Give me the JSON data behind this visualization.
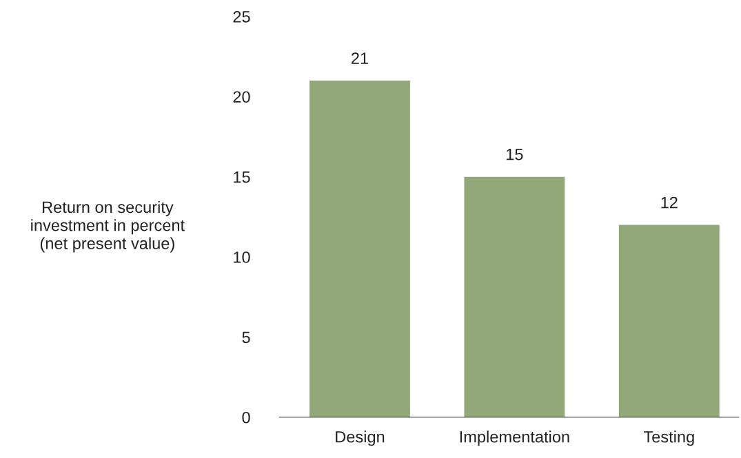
{
  "chart_data": {
    "type": "bar",
    "ylabel": "Return on security\ninvestment in percent\n(net present value)",
    "categories": [
      "Design",
      "Implementation",
      "Testing"
    ],
    "values": [
      21,
      15,
      12
    ],
    "color": "#92a878",
    "ylim": [
      0,
      25
    ],
    "yticks": [
      0,
      5,
      10,
      15,
      20,
      25
    ],
    "data_labels": true,
    "grid": false,
    "legend": false
  }
}
